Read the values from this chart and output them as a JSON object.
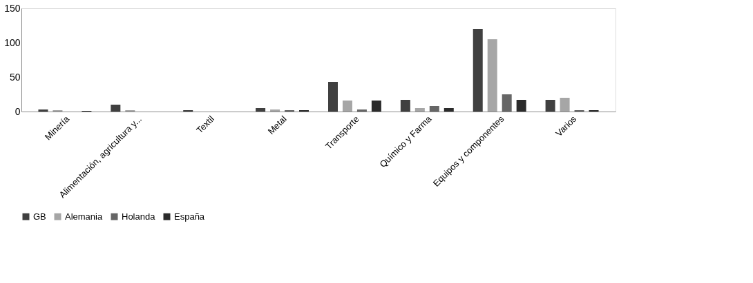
{
  "chart_data": {
    "type": "bar",
    "categories": [
      "Minería",
      "Alimentación, agricultura y...",
      "Textil",
      "Metal",
      "Transporte",
      "Químico y Farma",
      "Equipos y componentes",
      "Varios"
    ],
    "series": [
      {
        "name": "GB",
        "color": "#404040",
        "values": [
          3,
          10,
          2,
          5,
          43,
          17,
          120,
          17
        ]
      },
      {
        "name": "Alemania",
        "color": "#a6a6a6",
        "values": [
          2,
          2,
          null,
          3,
          16,
          5,
          105,
          20
        ]
      },
      {
        "name": "Holanda",
        "color": "#666666",
        "values": [
          null,
          null,
          0,
          2,
          3,
          8,
          25,
          2
        ]
      },
      {
        "name": "España",
        "color": "#2b2b2b",
        "values": [
          1,
          0,
          0,
          2,
          16,
          5,
          17,
          2
        ]
      }
    ],
    "ylim": [
      0,
      150
    ],
    "yticks": [
      0,
      50,
      100,
      150
    ],
    "grid": false,
    "legend": "bottom"
  }
}
